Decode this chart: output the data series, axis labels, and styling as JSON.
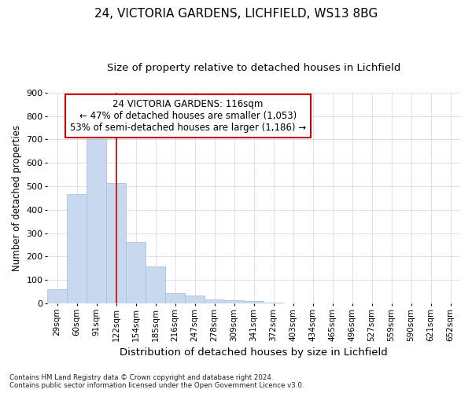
{
  "title_line1": "24, VICTORIA GARDENS, LICHFIELD, WS13 8BG",
  "title_line2": "Size of property relative to detached houses in Lichfield",
  "xlabel": "Distribution of detached houses by size in Lichfield",
  "ylabel": "Number of detached properties",
  "footnote": "Contains HM Land Registry data © Crown copyright and database right 2024.\nContains public sector information licensed under the Open Government Licence v3.0.",
  "bar_labels": [
    "29sqm",
    "60sqm",
    "91sqm",
    "122sqm",
    "154sqm",
    "185sqm",
    "216sqm",
    "247sqm",
    "278sqm",
    "309sqm",
    "341sqm",
    "372sqm",
    "403sqm",
    "434sqm",
    "465sqm",
    "496sqm",
    "527sqm",
    "559sqm",
    "590sqm",
    "621sqm",
    "652sqm"
  ],
  "bar_values": [
    62,
    467,
    700,
    513,
    263,
    158,
    45,
    33,
    17,
    12,
    10,
    2,
    0,
    0,
    0,
    0,
    0,
    0,
    0,
    0,
    0
  ],
  "bar_color": "#c8d8ee",
  "bar_edge_color": "#a8c0e0",
  "grid_color": "#d0dce8",
  "background_color": "#ffffff",
  "axes_background": "#ffffff",
  "red_line_x": 3.0,
  "annotation_box_text": "24 VICTORIA GARDENS: 116sqm\n← 47% of detached houses are smaller (1,053)\n53% of semi-detached houses are larger (1,186) →",
  "annotation_box_color": "#ffffff",
  "annotation_box_edge_color": "#cc0000",
  "ylim": [
    0,
    900
  ],
  "yticks": [
    0,
    100,
    200,
    300,
    400,
    500,
    600,
    700,
    800,
    900
  ],
  "title1_fontsize": 11,
  "title2_fontsize": 9.5,
  "ylabel_fontsize": 8.5,
  "xlabel_fontsize": 9.5,
  "tick_fontsize": 7.5,
  "annot_fontsize": 8.5
}
